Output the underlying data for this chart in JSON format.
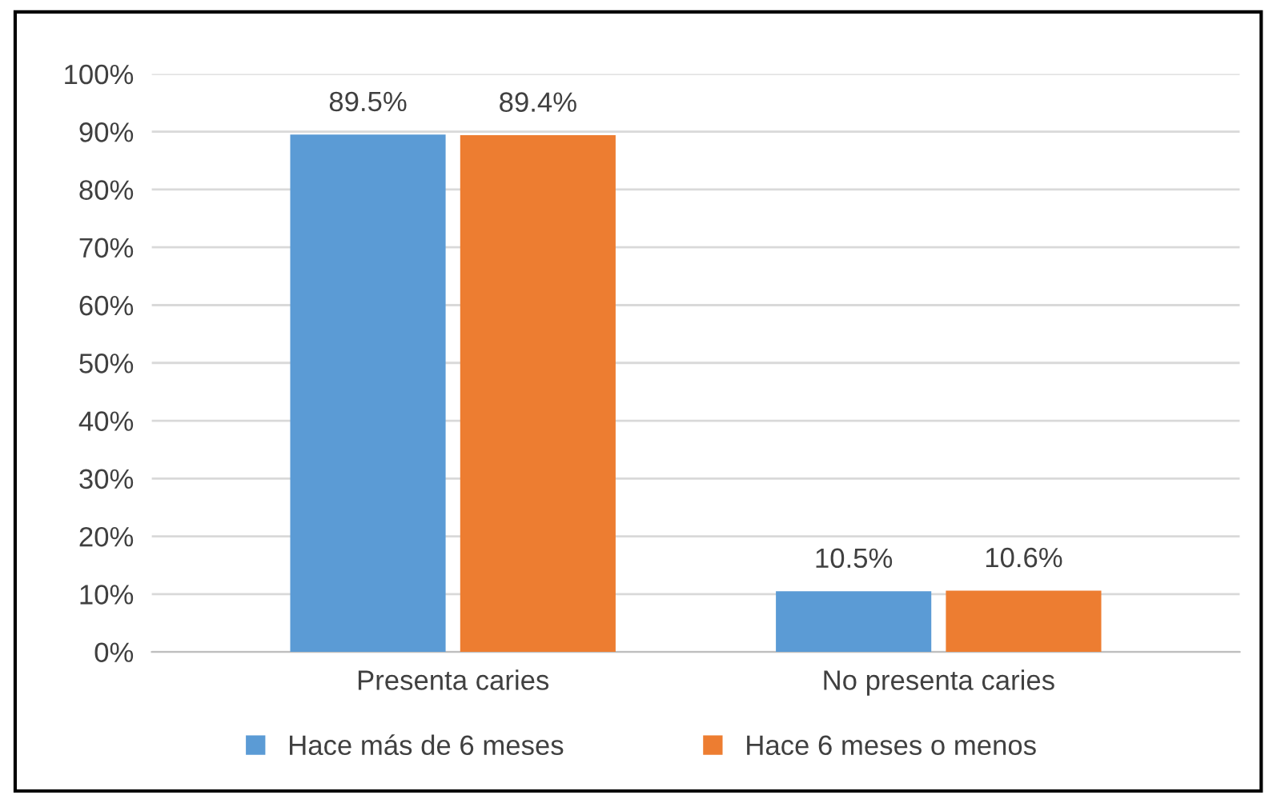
{
  "chart_data": {
    "type": "bar",
    "categories": [
      "Presenta caries",
      "No presenta caries"
    ],
    "series": [
      {
        "name": "Hace más de 6 meses",
        "color": "#5b9bd5",
        "values": [
          89.5,
          10.5
        ],
        "value_labels": [
          "89.5%",
          "10.5%"
        ]
      },
      {
        "name": "Hace 6 meses o menos",
        "color": "#ed7d31",
        "values": [
          89.4,
          10.6
        ],
        "value_labels": [
          "89.4%",
          "10.6%"
        ]
      }
    ],
    "ylim": [
      0,
      100
    ],
    "yticks": [
      {
        "value": 0,
        "label": "0%"
      },
      {
        "value": 10,
        "label": "10%"
      },
      {
        "value": 20,
        "label": "20%"
      },
      {
        "value": 30,
        "label": "30%"
      },
      {
        "value": 40,
        "label": "40%"
      },
      {
        "value": 50,
        "label": "50%"
      },
      {
        "value": 60,
        "label": "60%"
      },
      {
        "value": 70,
        "label": "70%"
      },
      {
        "value": 80,
        "label": "80%"
      },
      {
        "value": 90,
        "label": "90%"
      },
      {
        "value": 100,
        "label": "100%"
      }
    ],
    "grid": "y",
    "legend": "bottom"
  }
}
